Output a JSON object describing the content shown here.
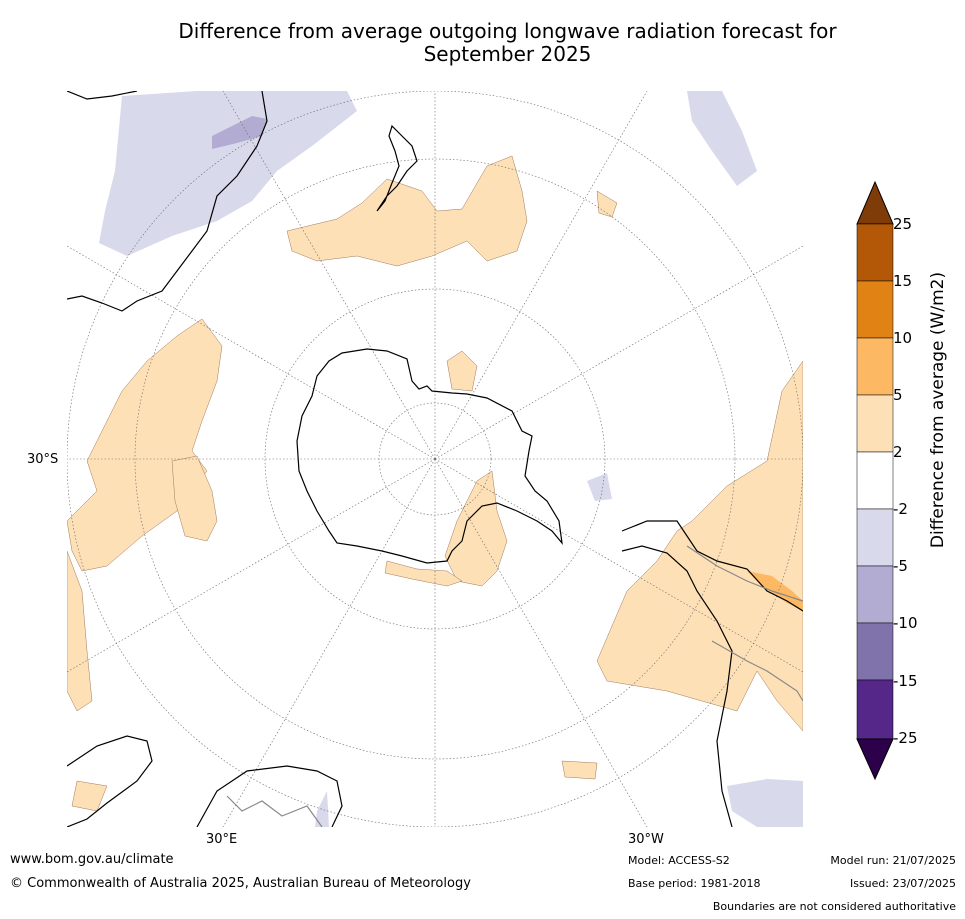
{
  "title_line1": "Difference from average outgoing longwave radiation forecast for",
  "title_line2": "September 2025",
  "map": {
    "projection": "south-polar-stereographic",
    "lat_label": "30°S",
    "lon_labels": [
      "30°E",
      "30°W"
    ]
  },
  "colorbar": {
    "label": "Difference from average (W/m2)",
    "ticks": [
      "25",
      "15",
      "10",
      "5",
      "2",
      "-2",
      "-5",
      "-10",
      "-15",
      "-25"
    ],
    "colors": [
      "#7f3b08",
      "#b35806",
      "#e08214",
      "#fdb863",
      "#fee0b6",
      "#ffffff",
      "#d8daeb",
      "#b2abd2",
      "#8073ac",
      "#542788",
      "#2d004b"
    ]
  },
  "footer": {
    "website": "www.bom.gov.au/climate",
    "copyright": "© Commonwealth of Australia 2025, Australian Bureau of Meteorology",
    "model": "Model: ACCESS-S2",
    "base_period": "Base period: 1981-2018",
    "model_run": "Model run: 21/07/2025",
    "issued": "Issued: 23/07/2025",
    "disclaimer": "Boundaries are not considered authoritative"
  }
}
